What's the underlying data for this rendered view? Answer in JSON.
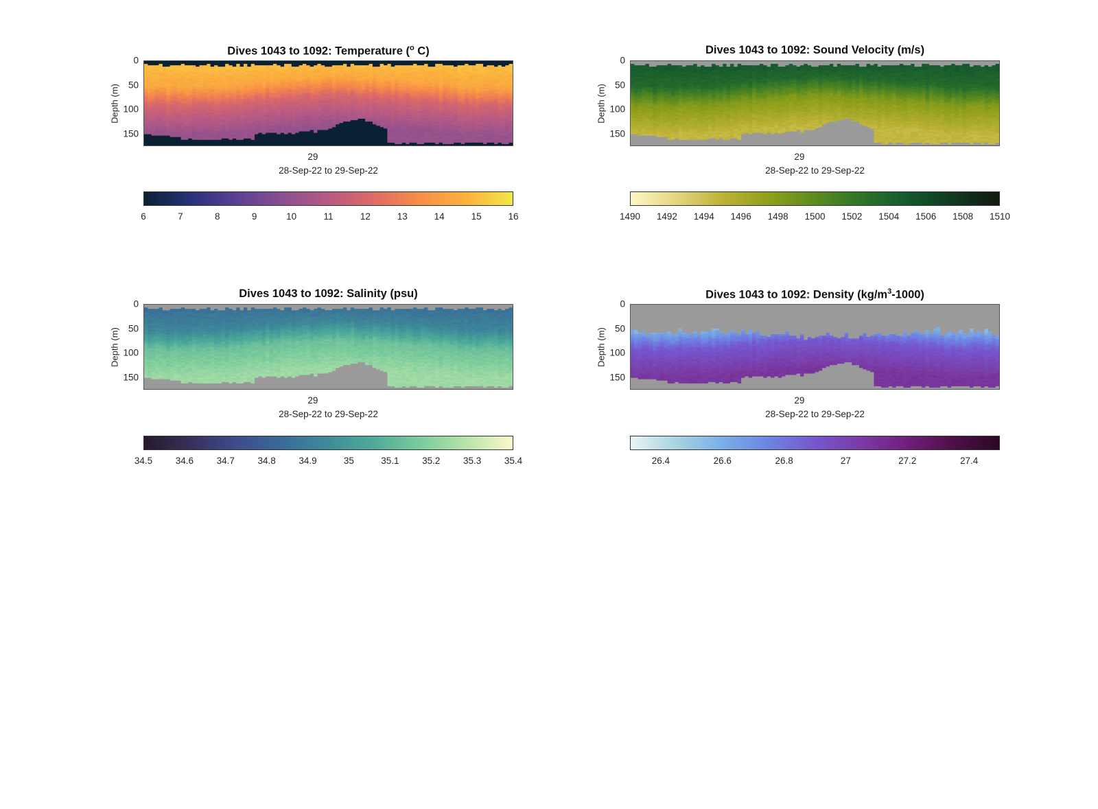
{
  "figure": {
    "background": "#ffffff",
    "missing_color": "#9a9a9a"
  },
  "chart_data": [
    {
      "id": "temperature",
      "type": "heatmap",
      "title_prefix": "Dives 1043 to 1092: Temperature (",
      "title_sup": "o",
      "title_suffix": " C)",
      "ylabel": "Depth (m)",
      "yticks": [
        "0",
        "50",
        "100",
        "150"
      ],
      "ylim": [
        0,
        175
      ],
      "y_reversed": true,
      "xtick": "29",
      "xlabel": "28-Sep-22 to 29-Sep-22",
      "dives": [
        1043,
        1092
      ],
      "below_bottom": "same_as_min_color",
      "colorbar": {
        "range": [
          6,
          16
        ],
        "ticks": [
          "6",
          "7",
          "8",
          "9",
          "10",
          "11",
          "12",
          "13",
          "14",
          "15",
          "16"
        ],
        "colors": [
          "#0a2033",
          "#26327a",
          "#5b3f94",
          "#8a4f8f",
          "#b75a84",
          "#df6b66",
          "#f78f46",
          "#fbb23e",
          "#f1e848"
        ]
      },
      "profile": {
        "surface": 15.2,
        "mid": 13.2,
        "deep": 10.6,
        "bottom": 10.1
      }
    },
    {
      "id": "sound-velocity",
      "type": "heatmap",
      "title_prefix": "Dives 1043 to 1092: Sound Velocity (m/s)",
      "title_sup": "",
      "title_suffix": "",
      "ylabel": "Depth (m)",
      "yticks": [
        "0",
        "50",
        "100",
        "150"
      ],
      "ylim": [
        0,
        175
      ],
      "y_reversed": true,
      "xtick": "29",
      "xlabel": "28-Sep-22 to 29-Sep-22",
      "dives": [
        1043,
        1092
      ],
      "below_bottom": "missing",
      "colorbar": {
        "range": [
          1490,
          1510
        ],
        "ticks": [
          "1490",
          "1492",
          "1494",
          "1496",
          "1498",
          "1500",
          "1502",
          "1504",
          "1506",
          "1508",
          "1510"
        ],
        "colors": [
          "#fdf7c8",
          "#e4d57f",
          "#bcb236",
          "#8f9f1c",
          "#5c8b1f",
          "#2f742a",
          "#14592d",
          "#12391f",
          "#131a12"
        ]
      },
      "profile": {
        "surface": 1505.2,
        "mid": 1501.0,
        "deep": 1495.2,
        "bottom": 1494.6
      }
    },
    {
      "id": "salinity",
      "type": "heatmap",
      "title_prefix": "Dives 1043 to 1092: Salinity (psu)",
      "title_sup": "",
      "title_suffix": "",
      "ylabel": "Depth (m)",
      "yticks": [
        "0",
        "50",
        "100",
        "150"
      ],
      "ylim": [
        0,
        175
      ],
      "y_reversed": true,
      "xtick": "29",
      "xlabel": "28-Sep-22 to 29-Sep-22",
      "dives": [
        1043,
        1092
      ],
      "below_bottom": "missing",
      "colorbar": {
        "range": [
          34.5,
          35.4
        ],
        "ticks": [
          "34.5",
          "34.6",
          "34.7",
          "34.8",
          "34.9",
          "35",
          "35.1",
          "35.2",
          "35.3",
          "35.4"
        ],
        "colors": [
          "#261a2b",
          "#382f5b",
          "#3d4c8c",
          "#3a6b97",
          "#3f8c99",
          "#4fab99",
          "#7ccb9c",
          "#b8e4ab",
          "#fcf8cc"
        ]
      },
      "profile": {
        "surface": 34.84,
        "mid": 35.05,
        "deep": 35.22,
        "bottom": 35.24
      }
    },
    {
      "id": "density",
      "type": "heatmap",
      "title_prefix": "Dives 1043 to 1092: Density (kg/m",
      "title_sup": "3",
      "title_suffix": "-1000)",
      "ylabel": "Depth (m)",
      "yticks": [
        "0",
        "50",
        "100",
        "150"
      ],
      "ylim": [
        0,
        175
      ],
      "y_reversed": true,
      "xtick": "29",
      "xlabel": "28-Sep-22 to 29-Sep-22",
      "dives": [
        1043,
        1092
      ],
      "below_bottom": "missing",
      "above_surface": "missing",
      "colorbar": {
        "range": [
          26.3,
          27.5
        ],
        "ticks": [
          "26.4",
          "26.6",
          "26.8",
          "27",
          "27.2",
          "27.4"
        ],
        "colors": [
          "#e8f4f3",
          "#a7d3e3",
          "#7aaee6",
          "#6d84e2",
          "#7657cf",
          "#7a3ba5",
          "#701f7b",
          "#4e0f47",
          "#2a0825"
        ]
      },
      "profile": {
        "surface": 26.45,
        "mid": 26.75,
        "deep": 27.05,
        "bottom": 27.08
      }
    }
  ]
}
